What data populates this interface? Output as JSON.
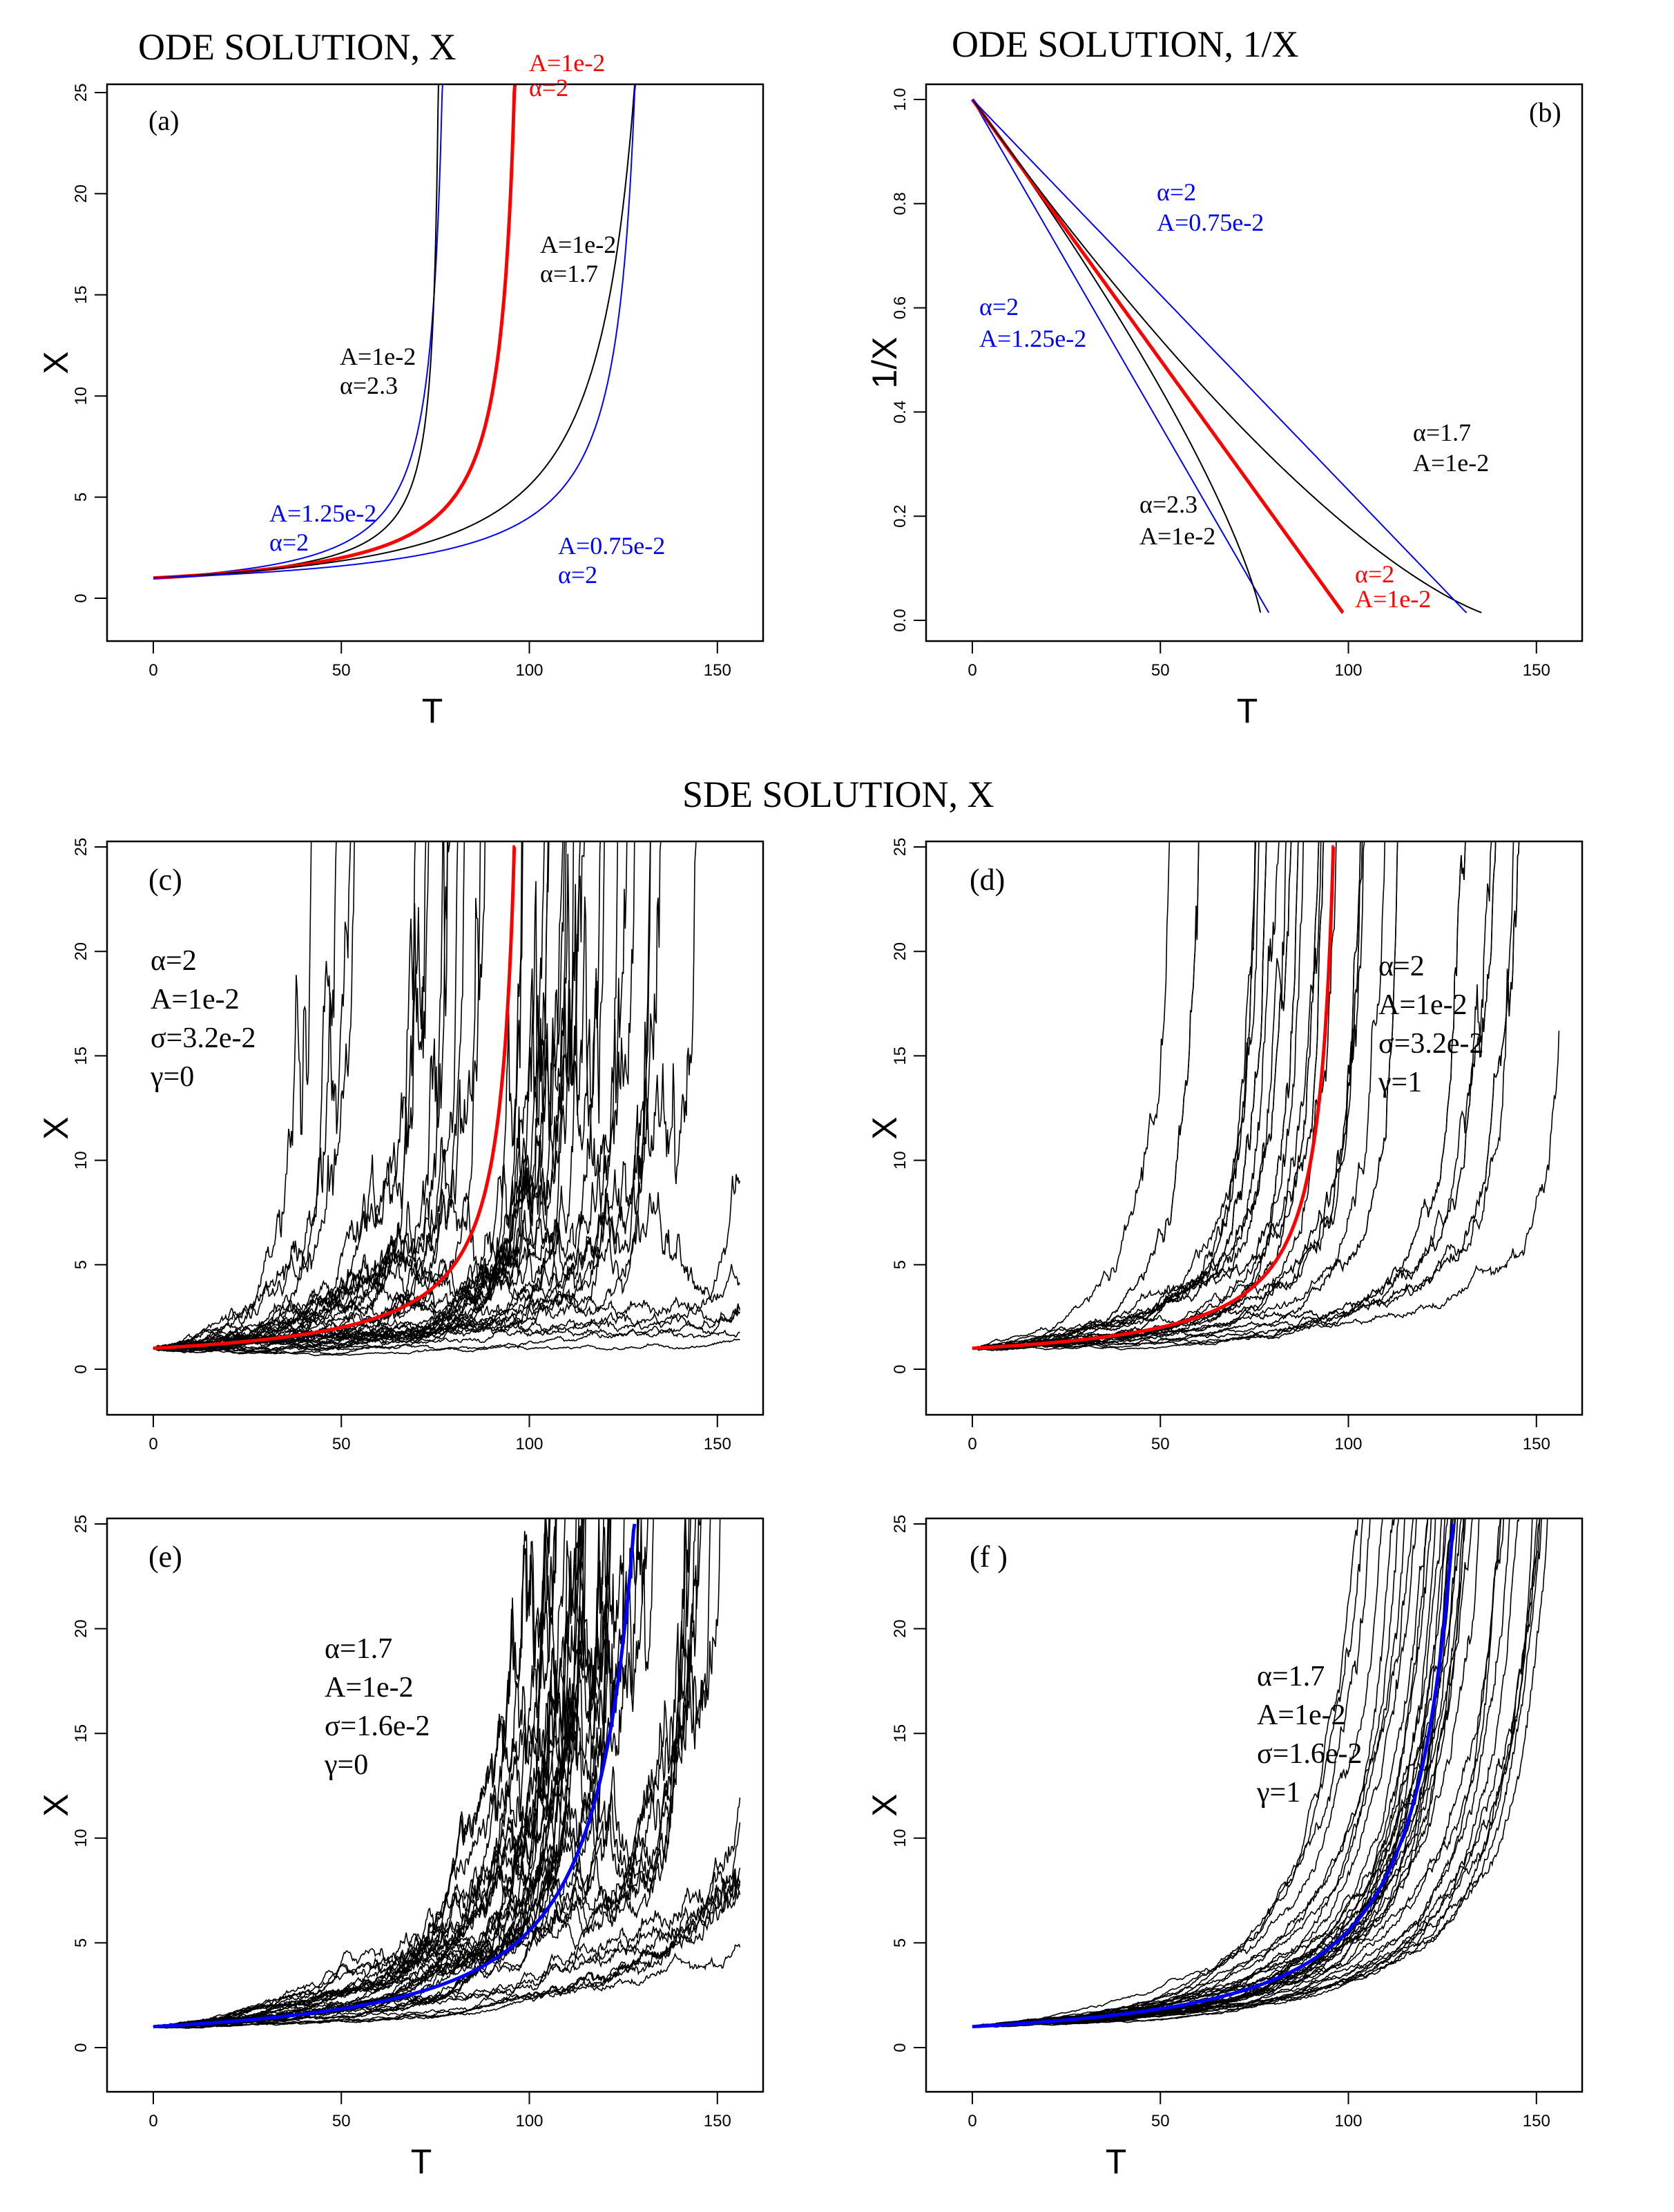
{
  "titles": {
    "ode_x": "ODE SOLUTION, X",
    "ode_inv": "ODE SOLUTION, 1/X",
    "sde": "SDE SOLUTION,  X"
  },
  "colors": {
    "blue": "#0000ff",
    "red": "#ff0000",
    "black": "#000000"
  },
  "chart_data": [
    {
      "type": "line",
      "panel": "a",
      "label": "(a)",
      "xlabel": "T",
      "ylabel": "X",
      "xlim": [
        0,
        155
      ],
      "ylim": [
        0,
        25
      ],
      "xticks": [
        0,
        50,
        100,
        150
      ],
      "yticks": [
        0,
        5,
        10,
        15,
        20,
        25
      ],
      "series": [
        {
          "A": 0.0125,
          "alpha": 2,
          "color": "blue",
          "width": 2
        },
        {
          "A": 0.01,
          "alpha": 2.3,
          "color": "black",
          "width": 2
        },
        {
          "A": 0.01,
          "alpha": 2,
          "color": "red",
          "width": 5
        },
        {
          "A": 0.01,
          "alpha": 1.7,
          "color": "black",
          "width": 2
        },
        {
          "A": 0.0075,
          "alpha": 2,
          "color": "blue",
          "width": 2
        }
      ],
      "annotations": [
        {
          "lines": [
            "A=1e-2",
            "α=2"
          ],
          "color": "red"
        },
        {
          "lines": [
            "A=1e-2",
            "α=1.7"
          ],
          "color": "black"
        },
        {
          "lines": [
            "A=1e-2",
            "α=2.3"
          ],
          "color": "black"
        },
        {
          "lines": [
            "A=1.25e-2",
            "α=2"
          ],
          "color": "blue"
        },
        {
          "lines": [
            "A=0.75e-2",
            "α=2"
          ],
          "color": "blue"
        }
      ]
    },
    {
      "type": "line",
      "panel": "b",
      "label": "(b)",
      "xlabel": "T",
      "ylabel": "1/X",
      "xlim": [
        0,
        155
      ],
      "ylim": [
        0,
        1
      ],
      "xticks": [
        0,
        50,
        100,
        150
      ],
      "yticks": [
        "0.0",
        "0.2",
        "0.4",
        "0.6",
        "0.8",
        "1.0"
      ],
      "series": [
        {
          "A": 0.0125,
          "alpha": 2,
          "color": "blue",
          "width": 2
        },
        {
          "A": 0.01,
          "alpha": 2.3,
          "color": "black",
          "width": 2
        },
        {
          "A": 0.01,
          "alpha": 2,
          "color": "red",
          "width": 5
        },
        {
          "A": 0.01,
          "alpha": 1.7,
          "color": "black",
          "width": 2
        },
        {
          "A": 0.0075,
          "alpha": 2,
          "color": "blue",
          "width": 2
        }
      ],
      "annotations": [
        {
          "lines": [
            "α=2",
            "A=0.75e-2"
          ],
          "color": "blue"
        },
        {
          "lines": [
            "α=2",
            "A=1.25e-2"
          ],
          "color": "blue"
        },
        {
          "lines": [
            "α=1.7",
            "A=1e-2"
          ],
          "color": "black"
        },
        {
          "lines": [
            "α=2.3",
            "A=1e-2"
          ],
          "color": "black"
        },
        {
          "lines": [
            "α=2",
            "A=1e-2"
          ],
          "color": "red"
        }
      ]
    },
    {
      "type": "line",
      "panel": "c",
      "label": "(c)",
      "xlabel": "",
      "ylabel": "X",
      "xlim": [
        0,
        155
      ],
      "ylim": [
        0,
        25
      ],
      "xticks": [
        0,
        50,
        100,
        150
      ],
      "yticks": [
        0,
        5,
        10,
        15,
        20,
        25
      ],
      "alpha": 2,
      "A": 0.01,
      "sigma": 0.032,
      "gamma": 0,
      "paths": 40,
      "mean_color": "red",
      "annotations": [
        {
          "lines": [
            "α=2",
            "A=1e-2",
            "σ=3.2e-2",
            "γ=0"
          ],
          "color": "black"
        }
      ]
    },
    {
      "type": "line",
      "panel": "d",
      "label": "(d)",
      "xlabel": "",
      "ylabel": "X",
      "xlim": [
        0,
        155
      ],
      "ylim": [
        0,
        25
      ],
      "xticks": [
        0,
        50,
        100,
        150
      ],
      "yticks": [
        0,
        5,
        10,
        15,
        20,
        25
      ],
      "alpha": 2,
      "A": 0.01,
      "sigma": 0.032,
      "gamma": 1,
      "paths": 40,
      "mean_color": "red",
      "annotations": [
        {
          "lines": [
            "α=2",
            "A=1e-2",
            "σ=3.2e-2",
            "γ=1"
          ],
          "color": "black"
        }
      ]
    },
    {
      "type": "line",
      "panel": "e",
      "label": "(e)",
      "xlabel": "T",
      "ylabel": "X",
      "xlim": [
        0,
        155
      ],
      "ylim": [
        0,
        25
      ],
      "xticks": [
        0,
        50,
        100,
        150
      ],
      "yticks": [
        0,
        5,
        10,
        15,
        20,
        25
      ],
      "alpha": 1.7,
      "A": 0.01,
      "sigma": 0.016,
      "gamma": 0,
      "paths": 40,
      "mean_color": "blue",
      "annotations": [
        {
          "lines": [
            "α=1.7",
            "A=1e-2",
            "σ=1.6e-2",
            "γ=0"
          ],
          "color": "black"
        }
      ]
    },
    {
      "type": "line",
      "panel": "f",
      "label": "(f )",
      "xlabel": "T",
      "ylabel": "X",
      "xlim": [
        0,
        155
      ],
      "ylim": [
        0,
        25
      ],
      "xticks": [
        0,
        50,
        100,
        150
      ],
      "yticks": [
        0,
        5,
        10,
        15,
        20,
        25
      ],
      "alpha": 1.7,
      "A": 0.01,
      "sigma": 0.016,
      "gamma": 1,
      "paths": 40,
      "mean_color": "blue",
      "annotations": [
        {
          "lines": [
            "α=1.7",
            "A=1e-2",
            "σ=1.6e-2",
            "γ=1"
          ],
          "color": "black"
        }
      ]
    }
  ]
}
